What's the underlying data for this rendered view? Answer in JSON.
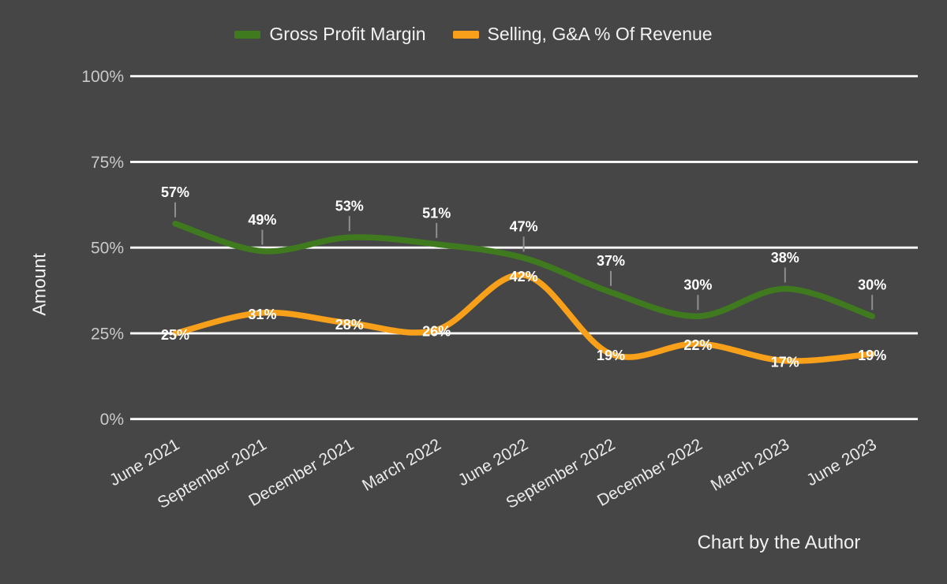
{
  "legend": {
    "items": [
      {
        "label": "Gross Profit Margin",
        "color": "#3f7a1f"
      },
      {
        "label": "Selling, G&A % Of Revenue",
        "color": "#f9a01b"
      }
    ]
  },
  "y_axis": {
    "title": "Amount"
  },
  "footer": {
    "credit": "Chart by the Author"
  },
  "chart_data": {
    "type": "line",
    "title": "",
    "xlabel": "",
    "ylabel": "Amount",
    "ylim": [
      0,
      100
    ],
    "grid": "horizontal",
    "legend_position": "top",
    "line_smoothing": true,
    "background_color": "#464646",
    "gridline_color": "#ffffff",
    "categories": [
      "June 2021",
      "September 2021",
      "December 2021",
      "March 2022",
      "June 2022",
      "September 2022",
      "December 2022",
      "March 2023",
      "June 2023"
    ],
    "ytick_values": [
      0,
      25,
      50,
      75,
      100
    ],
    "ytick_labels": [
      "0%",
      "25%",
      "50%",
      "75%",
      "100%"
    ],
    "series": [
      {
        "name": "Gross Profit Margin",
        "color": "#3f7a1f",
        "values": [
          57,
          49,
          53,
          51,
          47,
          37,
          30,
          38,
          30
        ],
        "labels": [
          "57%",
          "49%",
          "53%",
          "51%",
          "47%",
          "37%",
          "30%",
          "38%",
          "30%"
        ]
      },
      {
        "name": "Selling, G&A % Of Revenue",
        "color": "#f9a01b",
        "values": [
          25,
          31,
          28,
          26,
          42,
          19,
          22,
          17,
          19
        ],
        "labels": [
          "25%",
          "31%",
          "28%",
          "26%",
          "42%",
          "19%",
          "22%",
          "17%",
          "19%"
        ]
      }
    ],
    "annotations": [
      "Chart by the Author"
    ]
  }
}
